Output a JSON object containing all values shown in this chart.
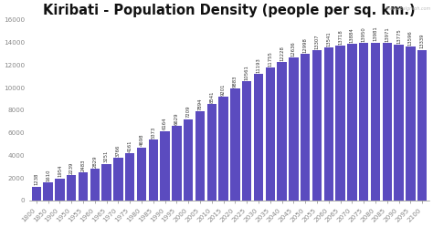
{
  "title": "Kiribati - Population Density (people per sq. km.)",
  "years": [
    "1800",
    "1850",
    "1900",
    "1950",
    "1955",
    "1960",
    "1965",
    "1970",
    "1975",
    "1980",
    "1985",
    "1990",
    "1995",
    "2000",
    "2005",
    "2010",
    "2015",
    "2020",
    "2025",
    "2030",
    "2035",
    "2040",
    "2045",
    "2050",
    "2055",
    "2060",
    "2065",
    "2070",
    "2075",
    "2080",
    "2085",
    "2090",
    "2095",
    "2100"
  ],
  "values": [
    1238,
    1610,
    1954,
    2239,
    2483,
    2829,
    3251,
    3766,
    4161,
    4698,
    5373,
    6164,
    6629,
    7209,
    7894,
    8541,
    9201,
    9883,
    10561,
    11193,
    11755,
    12228,
    12636,
    12998,
    13307,
    13541,
    13718,
    13884,
    13950,
    13981,
    13971,
    13775,
    13596,
    13339
  ],
  "bar_color": "#5b4bbf",
  "bg_color": "#ffffff",
  "text_color": "#333333",
  "axis_color": "#888888",
  "ylim": [
    0,
    16000
  ],
  "yticks": [
    0,
    2000,
    4000,
    6000,
    8000,
    10000,
    12000,
    14000,
    16000
  ],
  "title_fontsize": 10.5,
  "tick_fontsize": 5.2,
  "value_fontsize": 3.8,
  "watermark": "theglobalgraph.com"
}
